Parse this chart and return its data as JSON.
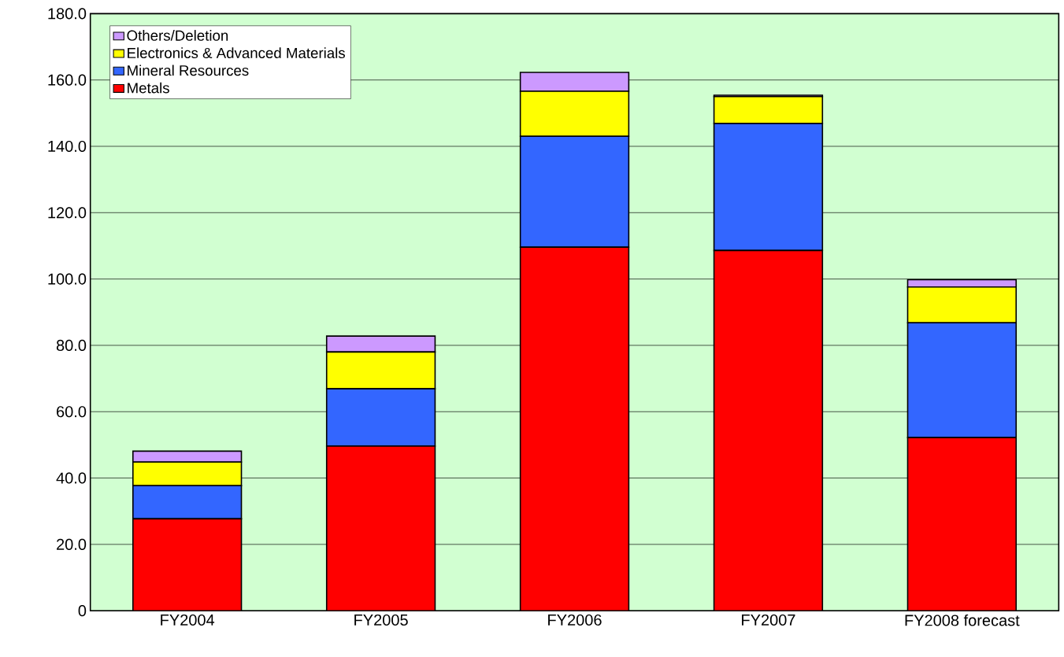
{
  "chart_data": {
    "type": "bar",
    "stacked": true,
    "categories": [
      "FY2004",
      "FY2005",
      "FY2006",
      "FY2007",
      "FY2008 forecast"
    ],
    "series": [
      {
        "name": "Metals",
        "color": "#ff0000",
        "values": [
          27.7,
          49.6,
          109.6,
          108.6,
          52.2
        ]
      },
      {
        "name": "Mineral Resources",
        "color": "#3366ff",
        "values": [
          10.0,
          17.3,
          33.4,
          38.3,
          34.6
        ]
      },
      {
        "name": "Electronics & Advanced Materials",
        "color": "#ffff00",
        "values": [
          7.1,
          11.1,
          13.6,
          8.1,
          10.8
        ]
      },
      {
        "name": "Others/Deletion",
        "color": "#cc99ff",
        "values": [
          3.3,
          4.8,
          5.7,
          0.4,
          2.2
        ]
      }
    ],
    "ylim": [
      0,
      180
    ],
    "yticks": [
      0,
      {
        "value": 20,
        "label": "20.0"
      },
      {
        "value": 40,
        "label": "40.0"
      },
      {
        "value": 60,
        "label": "60.0"
      },
      {
        "value": 80,
        "label": "80.0"
      },
      {
        "value": 100,
        "label": "100.0"
      },
      {
        "value": 120,
        "label": "120.0"
      },
      {
        "value": 140,
        "label": "140.0"
      },
      {
        "value": 160,
        "label": "160.0"
      },
      {
        "value": 180,
        "label": "180.0"
      }
    ],
    "grid": "y",
    "legend": "top left"
  }
}
